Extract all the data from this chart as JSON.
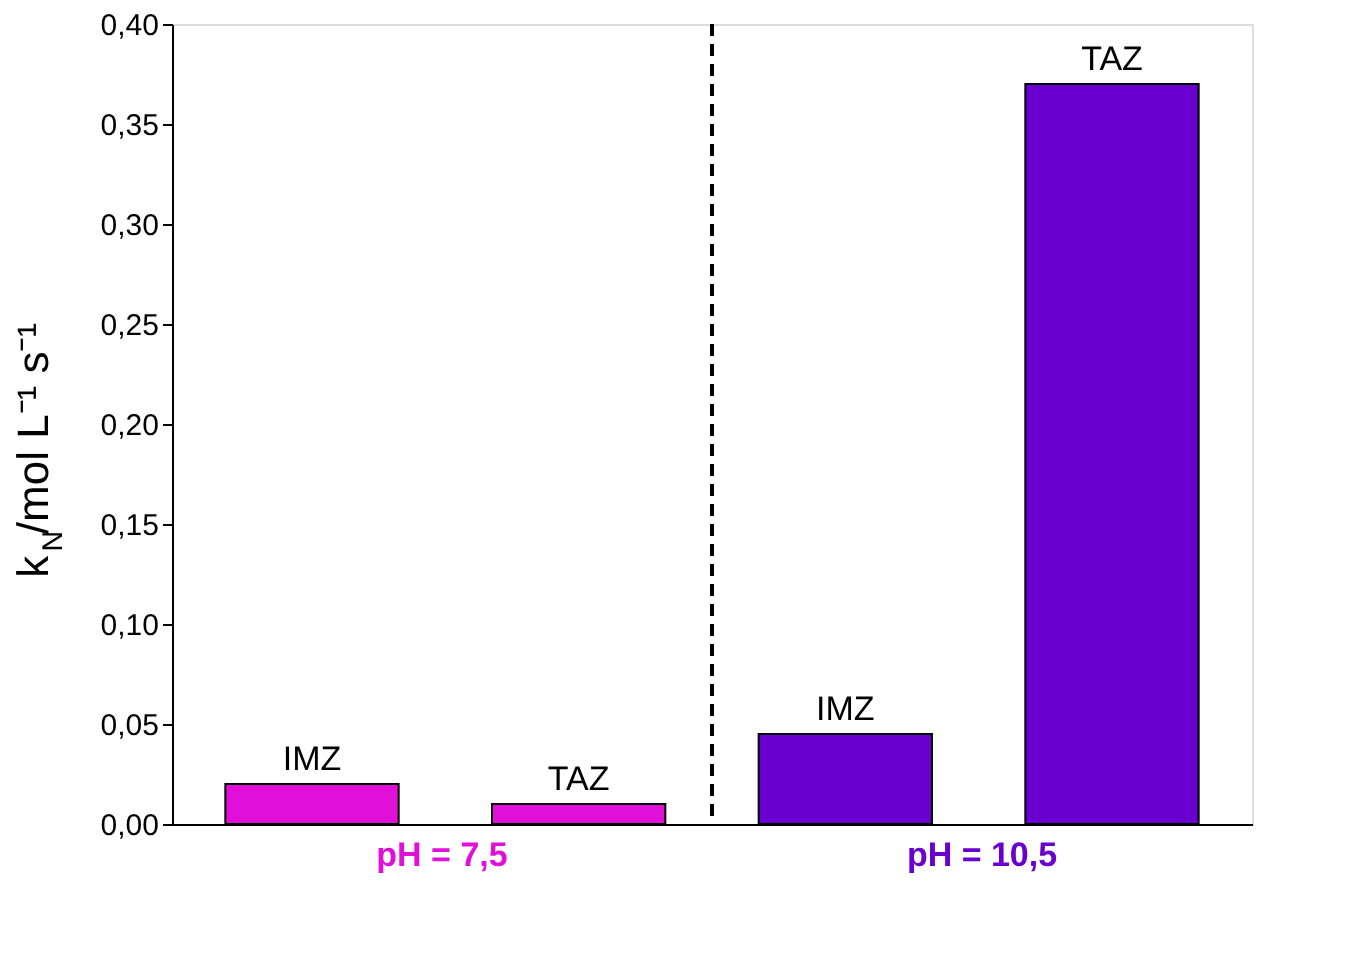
{
  "chart_data": {
    "type": "bar",
    "ylabel": "k$_{N}$/mol L⁻¹ s⁻¹",
    "categories": [
      "IMZ",
      "TAZ",
      "IMZ",
      "TAZ"
    ],
    "values": [
      0.02,
      0.01,
      0.045,
      0.37
    ],
    "colors": [
      "#e010d8",
      "#e010d8",
      "#6a00d0",
      "#6a00d0"
    ],
    "ylim": [
      0,
      0.4
    ],
    "yticks": [
      {
        "value": 0,
        "label": "0,00"
      },
      {
        "value": 0.05,
        "label": "0,05"
      },
      {
        "value": 0.1,
        "label": "0,10"
      },
      {
        "value": 0.15,
        "label": "0,15"
      },
      {
        "value": 0.2,
        "label": "0,20"
      },
      {
        "value": 0.25,
        "label": "0,25"
      },
      {
        "value": 0.3,
        "label": "0,30"
      },
      {
        "value": 0.35,
        "label": "0,35"
      },
      {
        "value": 0.4,
        "label": "0,40"
      }
    ],
    "ref_lines": [
      {
        "axis": "x",
        "line_style": "dashed",
        "color": "#000000"
      }
    ],
    "annotations": [
      "pH = 7,5",
      "pH = 10,5"
    ],
    "grid": false
  }
}
